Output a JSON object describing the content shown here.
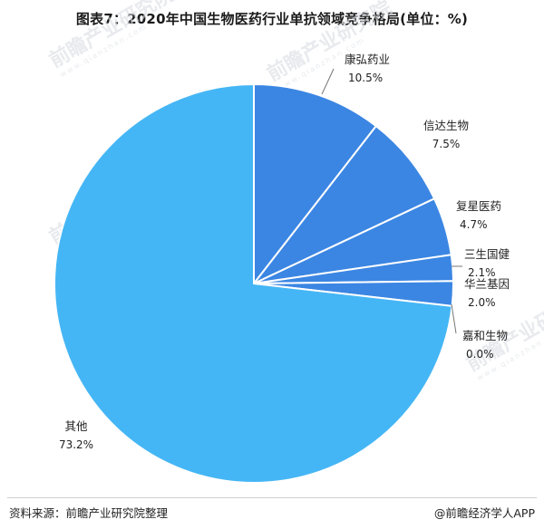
{
  "title": "图表7：2020年中国生物医药行业单抗领域竞争格局(单位：%)",
  "source": "资料来源：前瞻产业研究院整理",
  "credit": "@前瞻经济学人APP",
  "watermark": {
    "text": "前瞻产业研究院",
    "sub": "www.qianzhan.com"
  },
  "chart_data": {
    "type": "pie",
    "series": [
      {
        "name": "康弘药业",
        "value": 10.5,
        "label": "10.5%",
        "color": "#3b86e3"
      },
      {
        "name": "信达生物",
        "value": 7.5,
        "label": "7.5%",
        "color": "#3b86e3"
      },
      {
        "name": "复星医药",
        "value": 4.7,
        "label": "4.7%",
        "color": "#3b86e3"
      },
      {
        "name": "三生国健",
        "value": 2.1,
        "label": "2.1%",
        "color": "#3b86e3"
      },
      {
        "name": "华兰基因",
        "value": 2.0,
        "label": "2.0%",
        "color": "#3b86e3"
      },
      {
        "name": "嘉和生物",
        "value": 0.0,
        "label": "0.0%",
        "color": "#3b86e3"
      },
      {
        "name": "其他",
        "value": 73.2,
        "label": "73.2%",
        "color": "#45b6f5"
      }
    ],
    "start_angle": "12 o'clock",
    "direction": "clockwise",
    "labels": "outside with leader lines",
    "legend": "none"
  }
}
